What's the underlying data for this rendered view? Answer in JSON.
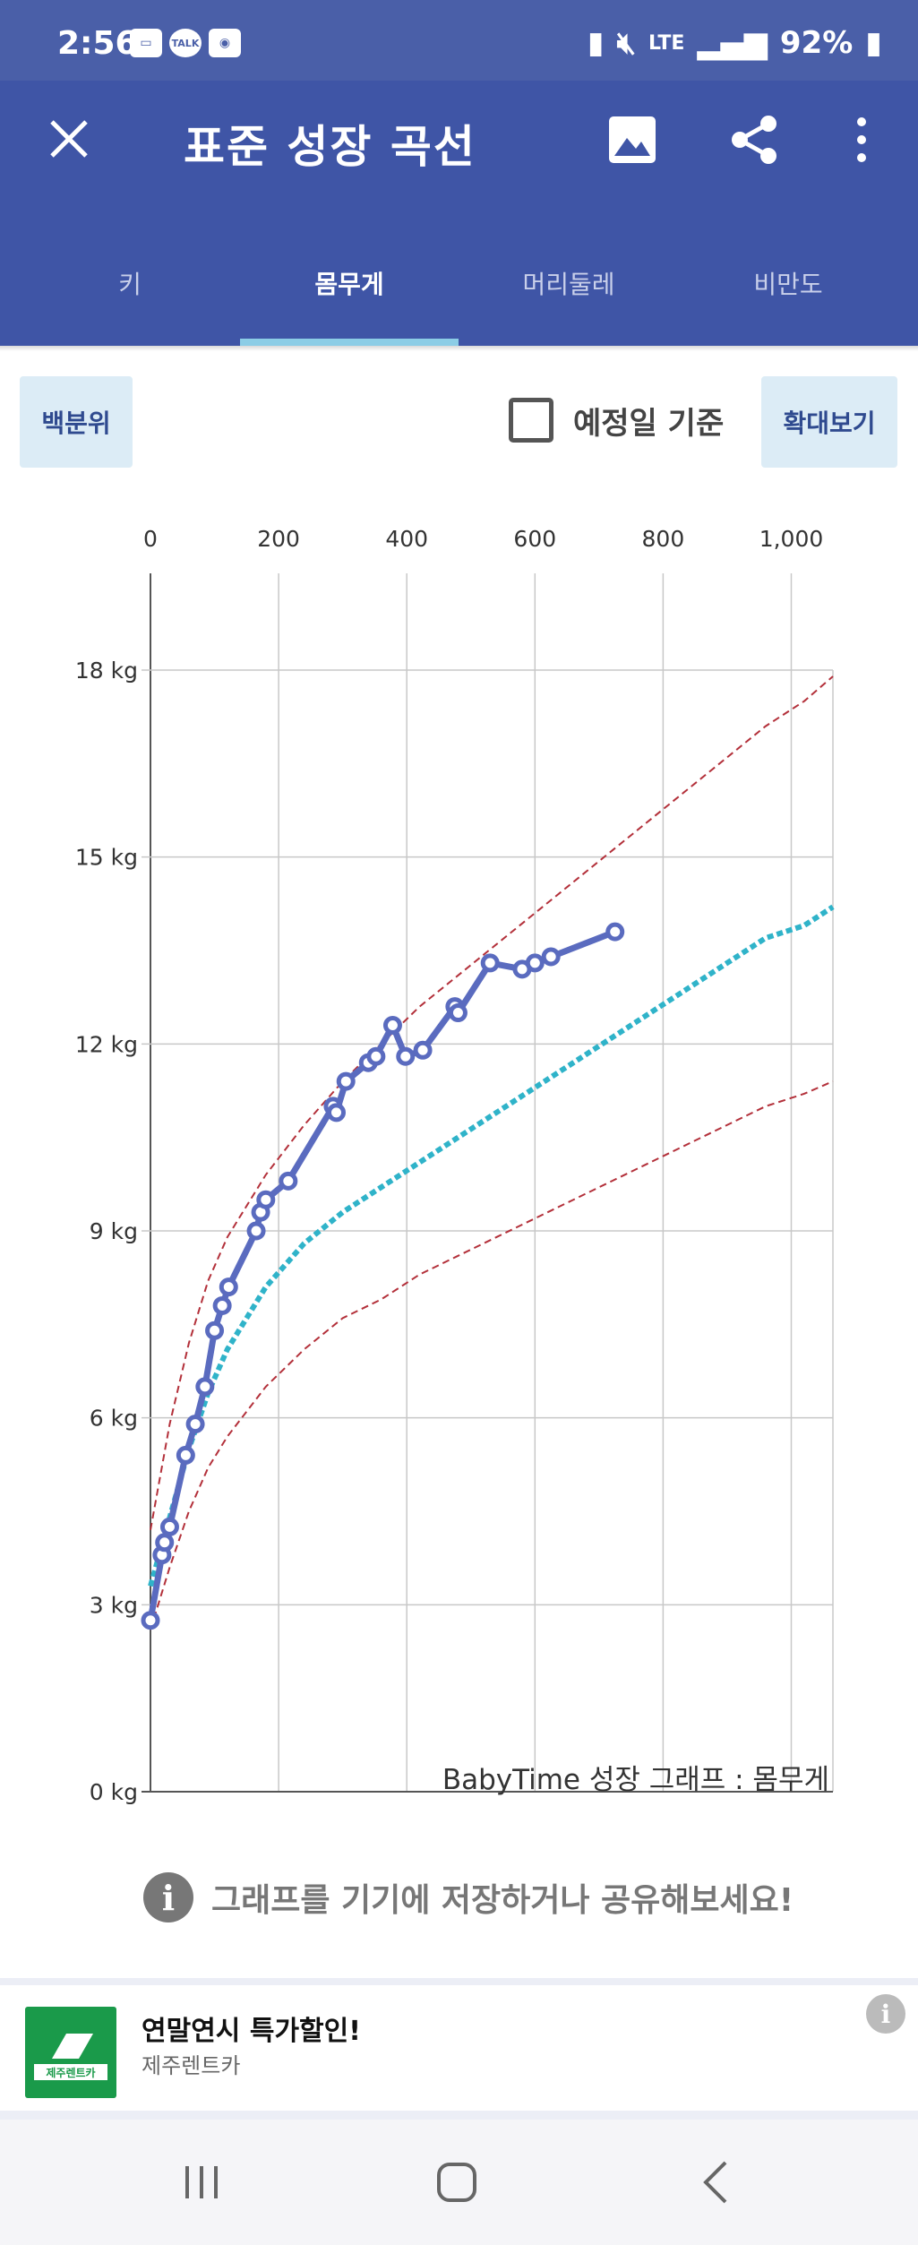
{
  "status": {
    "time": "2:56",
    "kakao_label": "TALK",
    "network": "LTE",
    "battery": "92%"
  },
  "appbar": {
    "title": "표준 성장 곡선"
  },
  "tabs": [
    {
      "label": "키",
      "active": false
    },
    {
      "label": "몸무게",
      "active": true
    },
    {
      "label": "머리둘레",
      "active": false
    },
    {
      "label": "비만도",
      "active": false
    }
  ],
  "controls": {
    "percentile_button": "백분위",
    "due_date_label": "예정일 기준",
    "zoom_button": "확대보기"
  },
  "info": {
    "message": "그래프를 기기에 저장하거나 공유해보세요!"
  },
  "ad": {
    "title": "연말연시 특가할인!",
    "advertiser": "제주렌트카",
    "logo_text": "제주렌트카"
  },
  "colors": {
    "appbar": "#3f55a6",
    "status": "#4a5fa8",
    "child_line": "#5a6bbf",
    "median_line": "#2fb3c9",
    "percentile_lines": "#b3303a"
  },
  "chart_data": {
    "type": "line",
    "watermark": "BabyTime 성장 그래프 : 몸무게",
    "x_ticks": [
      "0",
      "200",
      "400",
      "600",
      "800",
      "1,000"
    ],
    "x_tick_values": [
      0,
      200,
      400,
      600,
      800,
      1000
    ],
    "y_ticks": [
      "0 kg",
      "3 kg",
      "6 kg",
      "9 kg",
      "12 kg",
      "15 kg",
      "18 kg"
    ],
    "y_tick_values": [
      0,
      3,
      6,
      9,
      12,
      15,
      18
    ],
    "xlim": [
      0,
      1065
    ],
    "ylim": [
      0,
      20
    ],
    "grid": true,
    "series": [
      {
        "style": "solid-markers",
        "x": [
          0,
          18,
          22,
          30,
          55,
          70,
          85,
          100,
          112,
          122,
          165,
          172,
          180,
          215,
          285,
          290,
          305,
          340,
          352,
          378,
          398,
          425,
          475,
          480,
          530,
          580,
          600,
          625,
          725
        ],
        "y": [
          2.75,
          3.8,
          4.0,
          4.25,
          5.4,
          5.9,
          6.5,
          7.4,
          7.8,
          8.1,
          9.0,
          9.3,
          9.5,
          9.8,
          11.0,
          10.9,
          11.4,
          11.7,
          11.8,
          12.3,
          11.8,
          11.9,
          12.6,
          12.5,
          13.3,
          13.2,
          13.3,
          13.4,
          13.8
        ]
      },
      {
        "style": "dotted-median",
        "x": [
          0,
          30,
          60,
          90,
          120,
          180,
          240,
          300,
          360,
          420,
          480,
          540,
          600,
          660,
          720,
          780,
          840,
          900,
          960,
          1020,
          1065
        ],
        "y": [
          3.3,
          4.4,
          5.5,
          6.4,
          7.1,
          8.1,
          8.8,
          9.3,
          9.7,
          10.1,
          10.5,
          10.9,
          11.3,
          11.7,
          12.1,
          12.5,
          12.9,
          13.3,
          13.7,
          13.9,
          14.2
        ]
      },
      {
        "style": "dashed-upper",
        "x": [
          0,
          30,
          60,
          90,
          120,
          180,
          240,
          300,
          360,
          420,
          480,
          540,
          600,
          660,
          720,
          780,
          840,
          900,
          960,
          1020,
          1065
        ],
        "y": [
          4.2,
          5.9,
          7.2,
          8.2,
          8.9,
          9.9,
          10.7,
          11.4,
          12.0,
          12.6,
          13.1,
          13.6,
          14.1,
          14.6,
          15.1,
          15.6,
          16.1,
          16.6,
          17.1,
          17.5,
          17.9
        ]
      },
      {
        "style": "dashed-lower",
        "x": [
          0,
          30,
          60,
          90,
          120,
          180,
          240,
          300,
          360,
          420,
          480,
          540,
          600,
          660,
          720,
          780,
          840,
          900,
          960,
          1020,
          1065
        ],
        "y": [
          2.6,
          3.6,
          4.5,
          5.2,
          5.7,
          6.5,
          7.1,
          7.6,
          7.9,
          8.3,
          8.6,
          8.9,
          9.2,
          9.5,
          9.8,
          10.1,
          10.4,
          10.7,
          11.0,
          11.2,
          11.4
        ]
      }
    ]
  }
}
